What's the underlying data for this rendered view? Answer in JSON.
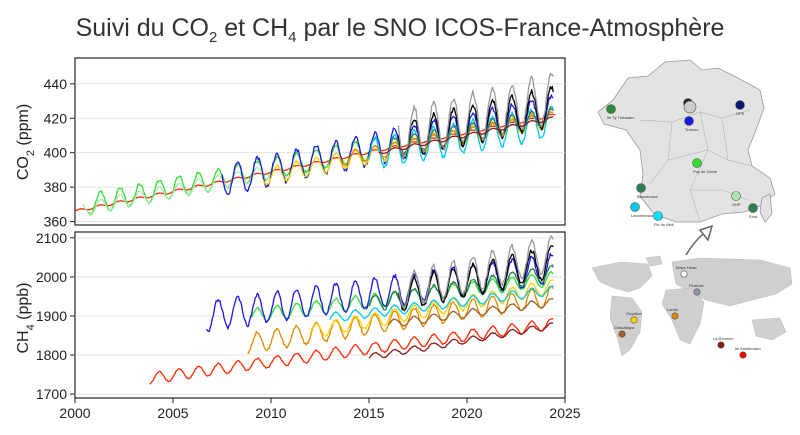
{
  "title": {
    "prefix": "Suivi du CO",
    "sub1": "2",
    "mid": " et CH",
    "sub2": "4",
    "suffix": " par le SNO ICOS-France-Atmosphère"
  },
  "chart_data": [
    {
      "type": "line",
      "ylabel_main": "CO",
      "ylabel_sub": "2",
      "ylabel_unit": " (ppm)",
      "xlim": [
        2000,
        2025
      ],
      "ylim": [
        358,
        455
      ],
      "yticks": [
        360,
        380,
        400,
        420,
        440
      ],
      "series": [
        {
          "color": "#ff2a00",
          "kind": "trend",
          "start": 2000,
          "end": 2024.5,
          "y0": 366,
          "y1": 422,
          "amp": 1.5
        },
        {
          "color": "#33dd33",
          "kind": "seasonal",
          "start": 2000.7,
          "end": 2015.5,
          "y0": 370,
          "y1": 403,
          "amp": 6
        },
        {
          "color": "#aee8b0",
          "kind": "seasonal",
          "start": 2000.4,
          "end": 2010,
          "y0": 367,
          "y1": 389,
          "amp": 4
        },
        {
          "color": "#1a1ae0",
          "kind": "seasonal",
          "start": 2007.5,
          "end": 2024.4,
          "y0": 384,
          "y1": 424,
          "amp": 9
        },
        {
          "color": "#ffd000",
          "kind": "seasonal",
          "start": 2009.6,
          "end": 2024.4,
          "y0": 386,
          "y1": 420,
          "amp": 5
        },
        {
          "color": "#e08a00",
          "kind": "seasonal",
          "start": 2013.5,
          "end": 2024.4,
          "y0": 396,
          "y1": 420,
          "amp": 4
        },
        {
          "color": "#00c8f0",
          "kind": "seasonal",
          "start": 2015,
          "end": 2024.4,
          "y0": 399,
          "y1": 418,
          "amp": 9
        },
        {
          "color": "#2e7d50",
          "kind": "seasonal",
          "start": 2016,
          "end": 2024.4,
          "y0": 403,
          "y1": 421,
          "amp": 5
        },
        {
          "color": "#000000",
          "kind": "seasonal",
          "start": 2016.5,
          "end": 2024.4,
          "y0": 407,
          "y1": 427,
          "amp": 11
        },
        {
          "color": "#999999",
          "kind": "seasonal",
          "start": 2016.5,
          "end": 2024.4,
          "y0": 410,
          "y1": 432,
          "amp": 14
        },
        {
          "color": "#8b1a1a",
          "kind": "seasonal",
          "start": 2015.5,
          "end": 2024.4,
          "y0": 400,
          "y1": 420,
          "amp": 1
        }
      ]
    },
    {
      "type": "line",
      "ylabel_main": "CH",
      "ylabel_sub": "4",
      "ylabel_unit": " (ppb)",
      "xlim": [
        2000,
        2025
      ],
      "ylim": [
        1690,
        2115
      ],
      "yticks": [
        1700,
        1800,
        1900,
        2000,
        2100
      ],
      "xticks": [
        2000,
        2005,
        2010,
        2015,
        2020,
        2025
      ],
      "series": [
        {
          "color": "#ff2a00",
          "kind": "seasonal",
          "start": 2003.8,
          "end": 2024.4,
          "y0": 1740,
          "y1": 1880,
          "amp": 14
        },
        {
          "color": "#8b1a1a",
          "kind": "seasonal",
          "start": 2015,
          "end": 2024.4,
          "y0": 1795,
          "y1": 1875,
          "amp": 8
        },
        {
          "color": "#e08a00",
          "kind": "seasonal",
          "start": 2008.8,
          "end": 2024.4,
          "y0": 1830,
          "y1": 1950,
          "amp": 25
        },
        {
          "color": "#ffd000",
          "kind": "seasonal",
          "start": 2012,
          "end": 2024.4,
          "y0": 1860,
          "y1": 1975,
          "amp": 18
        },
        {
          "color": "#a0622d",
          "kind": "seasonal",
          "start": 2016,
          "end": 2024.4,
          "y0": 1880,
          "y1": 1935,
          "amp": 10
        },
        {
          "color": "#00c8f0",
          "kind": "seasonal",
          "start": 2013,
          "end": 2024.4,
          "y0": 1895,
          "y1": 1965,
          "amp": 12
        },
        {
          "color": "#33dd33",
          "kind": "seasonal",
          "start": 2009,
          "end": 2024.4,
          "y0": 1900,
          "y1": 1995,
          "amp": 18
        },
        {
          "color": "#1a1ae0",
          "kind": "seasonal",
          "start": 2006.7,
          "end": 2024.4,
          "y0": 1900,
          "y1": 2020,
          "amp": 38
        },
        {
          "color": "#2e7d50",
          "kind": "seasonal",
          "start": 2015,
          "end": 2024.4,
          "y0": 1930,
          "y1": 2010,
          "amp": 20
        },
        {
          "color": "#000000",
          "kind": "seasonal",
          "start": 2016.5,
          "end": 2024.4,
          "y0": 1950,
          "y1": 2040,
          "amp": 40
        },
        {
          "color": "#999999",
          "kind": "seasonal",
          "start": 2016.5,
          "end": 2024.4,
          "y0": 1960,
          "y1": 2060,
          "amp": 45
        }
      ]
    }
  ],
  "france_map": {
    "stations": [
      {
        "name": "Ile Ty Trebaden",
        "color": "#2e8b3a"
      },
      {
        "name": "",
        "color": "#222222"
      },
      {
        "name": "",
        "color": "#cccccc"
      },
      {
        "name": "Trainou",
        "color": "#1a1ae0"
      },
      {
        "name": "OPE",
        "color": "#0a1a70"
      },
      {
        "name": "Puy de Dôme",
        "color": "#33dd33"
      },
      {
        "name": "Biscarrosse",
        "color": "#2e7d50"
      },
      {
        "name": "OHP",
        "color": "#aee8b0"
      },
      {
        "name": "Ersa",
        "color": "#2e7d50"
      },
      {
        "name": "Lannemezan",
        "color": "#00c8f0"
      },
      {
        "name": "Pic du Midi",
        "color": "#00e0ff"
      }
    ]
  },
  "world_map": {
    "stations": [
      {
        "name": "Mace Head",
        "color": "#ffffff"
      },
      {
        "name": "Pirabaki",
        "color": "#8899aa"
      },
      {
        "name": "Guyaflux",
        "color": "#ffd000"
      },
      {
        "name": "Chacaltaya",
        "color": "#a0622d"
      },
      {
        "name": "Lamto",
        "color": "#e08a00"
      },
      {
        "name": "La Réunion",
        "color": "#8b1a1a"
      },
      {
        "name": "Ile Amsterdam",
        "color": "#ff0000"
      }
    ]
  }
}
